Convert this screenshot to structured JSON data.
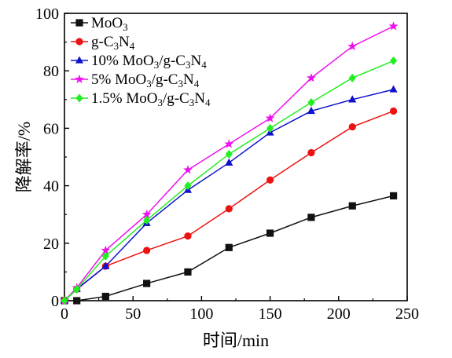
{
  "chart_data": {
    "type": "line",
    "xlabel": "时间/min",
    "ylabel": "降解率/%",
    "xlim": [
      0,
      250
    ],
    "ylim": [
      0,
      100
    ],
    "x_ticks": [
      0,
      50,
      100,
      150,
      200,
      250
    ],
    "y_ticks": [
      0,
      20,
      40,
      60,
      80,
      100
    ],
    "x_tick_labels": [
      "0",
      "50",
      "100",
      "150",
      "200",
      "250"
    ],
    "y_tick_labels": [
      "0",
      "20",
      "40",
      "60",
      "80",
      "100"
    ],
    "grid": false,
    "legend_position": "top-left",
    "x": [
      0,
      9,
      30,
      60,
      90,
      120,
      150,
      180,
      210,
      240
    ],
    "series": [
      {
        "name": "MoO3",
        "legend_parts": [
          [
            "MoO",
            "n"
          ],
          [
            "3",
            "sub"
          ]
        ],
        "color": "#111111",
        "marker": "square",
        "values": [
          0,
          0,
          1.5,
          6,
          10,
          18.5,
          23.5,
          29,
          33,
          36.5
        ]
      },
      {
        "name": "g-C3N4",
        "legend_parts": [
          [
            "g-C",
            "n"
          ],
          [
            "3",
            "sub"
          ],
          [
            "N",
            "n"
          ],
          [
            "4",
            "sub"
          ]
        ],
        "color": "#ee1111",
        "marker": "circle",
        "values": [
          0,
          4,
          12,
          17.5,
          22.5,
          32,
          42,
          51.5,
          60.5,
          66
        ]
      },
      {
        "name": "10% MoO3/g-C3N4",
        "legend_parts": [
          [
            "10% MoO",
            "n"
          ],
          [
            "3",
            "sub"
          ],
          [
            "/g-C",
            "n"
          ],
          [
            "3",
            "sub"
          ],
          [
            "N",
            "n"
          ],
          [
            "4",
            "sub"
          ]
        ],
        "color": "#1111cc",
        "marker": "triangle",
        "values": [
          0,
          4,
          12,
          27,
          38.5,
          48,
          58.5,
          66,
          70,
          73.5
        ]
      },
      {
        "name": "5% MoO3/g-C3N4",
        "legend_parts": [
          [
            "5% MoO",
            "n"
          ],
          [
            "3",
            "sub"
          ],
          [
            "/g-C",
            "n"
          ],
          [
            "3",
            "sub"
          ],
          [
            "N",
            "n"
          ],
          [
            "4",
            "sub"
          ]
        ],
        "color": "#ee11ee",
        "marker": "star",
        "values": [
          0,
          4.5,
          17.5,
          30,
          45.5,
          54.5,
          63.5,
          77.5,
          88.5,
          95.5
        ]
      },
      {
        "name": "1.5% MoO3/g-C3N4",
        "legend_parts": [
          [
            "1.5% MoO",
            "n"
          ],
          [
            "3",
            "sub"
          ],
          [
            "/g-C",
            "n"
          ],
          [
            "3",
            "sub"
          ],
          [
            "N",
            "n"
          ],
          [
            "4",
            "sub"
          ]
        ],
        "color": "#22ee22",
        "marker": "diamond",
        "values": [
          0,
          4,
          15.5,
          28,
          40,
          51,
          60,
          69,
          77.5,
          83.5
        ]
      }
    ]
  }
}
